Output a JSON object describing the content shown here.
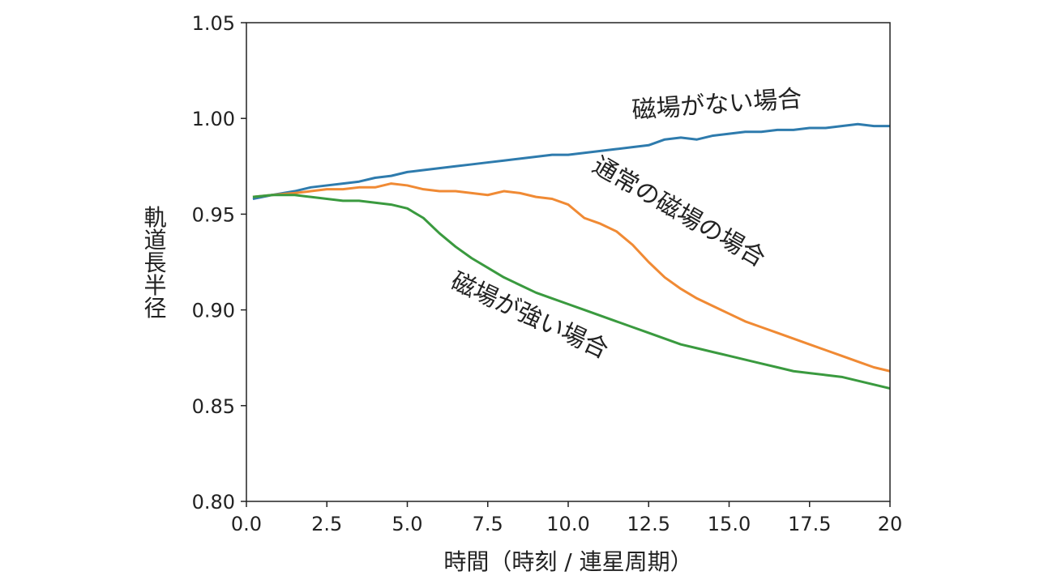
{
  "chart_data": {
    "type": "line",
    "xlabel": "時間（時刻 / 連星周期）",
    "ylabel": "軌道長半径",
    "xlim": [
      0,
      20
    ],
    "ylim": [
      0.8,
      1.05
    ],
    "x_ticks": [
      "0.0",
      "2.5",
      "5.0",
      "7.5",
      "10.0",
      "12.5",
      "15.0",
      "17.5",
      "20"
    ],
    "y_ticks": [
      "0.80",
      "0.85",
      "0.90",
      "0.95",
      "1.00",
      "1.05"
    ],
    "grid": false,
    "series": [
      {
        "color": "#2e7bad",
        "x": [
          0.2,
          0.8,
          1.5,
          2.0,
          2.5,
          3.0,
          3.5,
          4.0,
          4.5,
          5.0,
          5.5,
          6.0,
          6.5,
          7.0,
          7.5,
          8.0,
          8.5,
          9.0,
          9.5,
          10.0,
          10.5,
          11.0,
          11.5,
          12.0,
          12.5,
          13.0,
          13.5,
          14.0,
          14.5,
          15.0,
          15.5,
          16.0,
          16.5,
          17.0,
          17.5,
          18.0,
          18.5,
          19.0,
          19.5,
          20.0
        ],
        "y": [
          0.958,
          0.96,
          0.962,
          0.964,
          0.965,
          0.966,
          0.967,
          0.969,
          0.97,
          0.972,
          0.973,
          0.974,
          0.975,
          0.976,
          0.977,
          0.978,
          0.979,
          0.98,
          0.981,
          0.981,
          0.982,
          0.983,
          0.984,
          0.985,
          0.986,
          0.989,
          0.99,
          0.989,
          0.991,
          0.992,
          0.993,
          0.993,
          0.994,
          0.994,
          0.995,
          0.995,
          0.996,
          0.997,
          0.996,
          0.996
        ]
      },
      {
        "color": "#f08a34",
        "x": [
          0.2,
          0.8,
          1.5,
          2.0,
          2.5,
          3.0,
          3.5,
          4.0,
          4.5,
          5.0,
          5.5,
          6.0,
          6.5,
          7.0,
          7.5,
          8.0,
          8.5,
          9.0,
          9.5,
          10.0,
          10.5,
          11.0,
          11.5,
          12.0,
          12.5,
          13.0,
          13.5,
          14.0,
          14.5,
          15.0,
          15.5,
          16.0,
          16.5,
          17.0,
          17.5,
          18.0,
          18.5,
          19.0,
          19.5,
          20.0
        ],
        "y": [
          0.959,
          0.96,
          0.961,
          0.962,
          0.963,
          0.963,
          0.964,
          0.964,
          0.966,
          0.965,
          0.963,
          0.962,
          0.962,
          0.961,
          0.96,
          0.962,
          0.961,
          0.959,
          0.958,
          0.955,
          0.948,
          0.945,
          0.941,
          0.934,
          0.925,
          0.917,
          0.911,
          0.906,
          0.902,
          0.898,
          0.894,
          0.891,
          0.888,
          0.885,
          0.882,
          0.879,
          0.876,
          0.873,
          0.87,
          0.868
        ]
      },
      {
        "color": "#3a9a3f",
        "x": [
          0.2,
          0.8,
          1.5,
          2.0,
          2.5,
          3.0,
          3.5,
          4.0,
          4.5,
          5.0,
          5.5,
          6.0,
          6.5,
          7.0,
          7.5,
          8.0,
          8.5,
          9.0,
          9.5,
          10.0,
          10.5,
          11.0,
          11.5,
          12.0,
          12.5,
          13.0,
          13.5,
          14.0,
          14.5,
          15.0,
          15.5,
          16.0,
          16.5,
          17.0,
          17.5,
          18.0,
          18.5,
          19.0,
          19.5,
          20.0
        ],
        "y": [
          0.959,
          0.96,
          0.96,
          0.959,
          0.958,
          0.957,
          0.957,
          0.956,
          0.955,
          0.953,
          0.948,
          0.94,
          0.933,
          0.927,
          0.922,
          0.917,
          0.913,
          0.909,
          0.906,
          0.903,
          0.9,
          0.897,
          0.894,
          0.891,
          0.888,
          0.885,
          0.882,
          0.88,
          0.878,
          0.876,
          0.874,
          0.872,
          0.87,
          0.868,
          0.867,
          0.866,
          0.865,
          0.863,
          0.861,
          0.859
        ]
      }
    ],
    "annotations": [
      {
        "text": "磁場がない場合",
        "x": 12.0,
        "y": 1.0,
        "rotation": -4
      },
      {
        "text": "通常の磁場の場合",
        "x": 10.7,
        "y": 0.973,
        "rotation": 30
      },
      {
        "text": "磁場が強い場合",
        "x": 6.3,
        "y": 0.912,
        "rotation": 25
      }
    ]
  }
}
